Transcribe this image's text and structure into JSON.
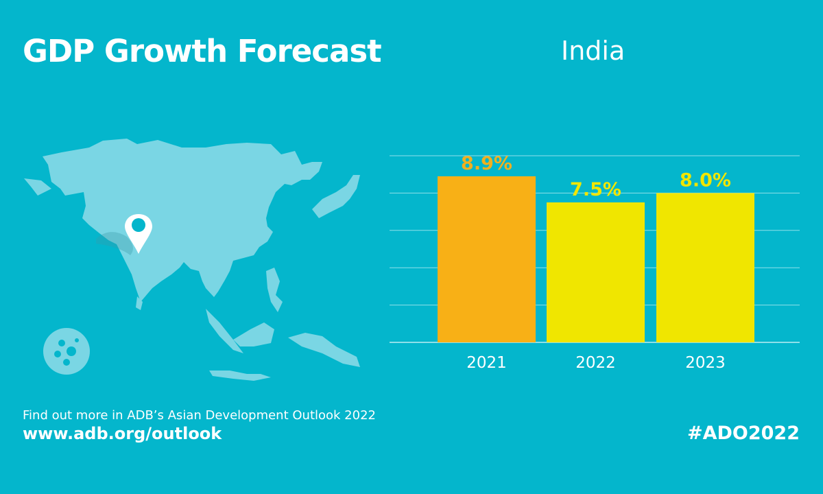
{
  "header": {
    "title": "GDP Growth Forecast",
    "country": "India"
  },
  "footer": {
    "info": "Find out more in ADB’s Asian Development Outlook 2022",
    "url": "www.adb.org/outlook",
    "hashtag": "#ADO2022"
  },
  "colors": {
    "background": "#04b6cc",
    "map": "#7ad6e4",
    "bar_2021": "#f8b016",
    "bar_forecast": "#f0e600",
    "label_2021": "#f0b020"
  },
  "icons": {
    "map": "asia-map-icon",
    "pin": "location-pin-icon",
    "virus": "coronavirus-icon"
  },
  "chart_data": {
    "type": "bar",
    "categories": [
      "2021",
      "2022",
      "2023"
    ],
    "values": [
      8.9,
      7.5,
      8.0
    ],
    "data_labels": [
      "8.9%",
      "7.5%",
      "8.0%"
    ],
    "title": "",
    "xlabel": "",
    "ylabel": "",
    "ylim": [
      0,
      10
    ],
    "grid": true,
    "gridlines": [
      0,
      2,
      4,
      6,
      8,
      10
    ]
  }
}
